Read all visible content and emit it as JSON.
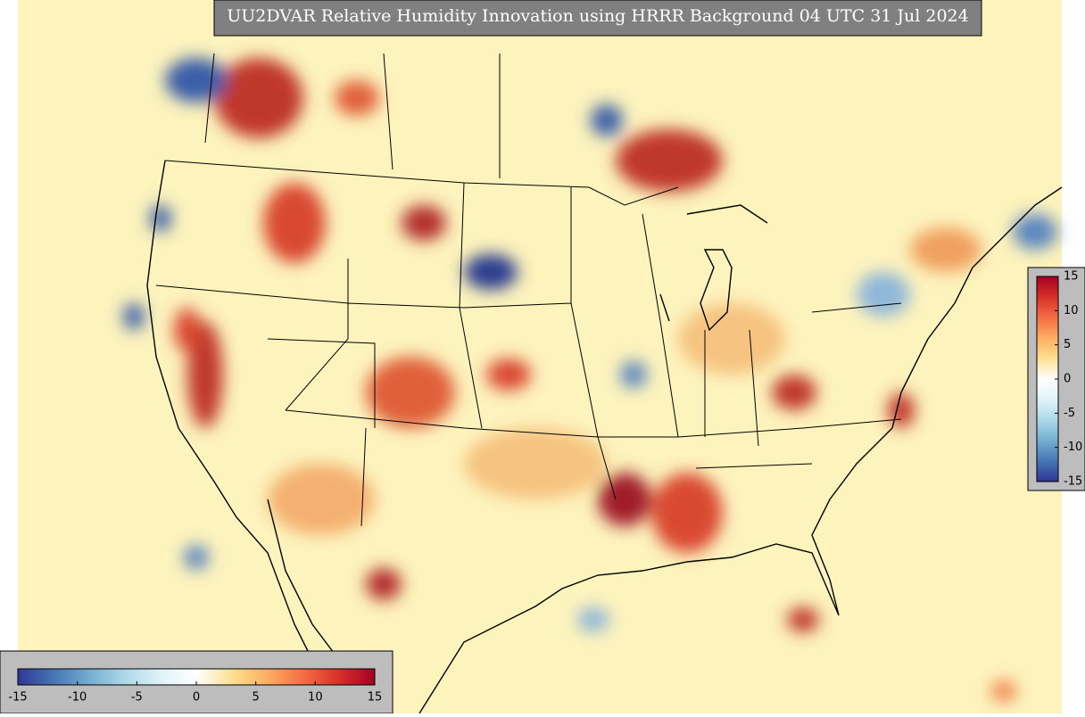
{
  "title": "UU2DVAR Relative Humidity Innovation using HRRR Background 04 UTC 31 Jul 2024",
  "colorbar_right": {
    "lim": [
      -15,
      15
    ],
    "ticks": [
      15,
      10,
      5,
      0,
      -5,
      -10,
      -15
    ]
  },
  "colorbar_bottom": {
    "lim": [
      -15,
      15
    ],
    "ticks": [
      -15,
      -10,
      -5,
      0,
      5,
      10,
      15
    ]
  }
}
